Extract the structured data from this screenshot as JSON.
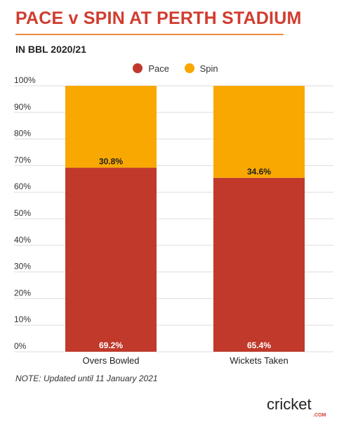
{
  "title": "PACE v SPIN AT PERTH STADIUM",
  "subtitle": "IN BBL 2020/21",
  "note": "NOTE: Updated until 11 January 2021",
  "logo": {
    "text": "cricket",
    "sub": ".COM"
  },
  "colors": {
    "pace": "#c0392b",
    "spin": "#f8a800",
    "title": "#d13c2f",
    "accent": "#ef8a3a"
  },
  "chart_data": {
    "type": "bar",
    "stacked": true,
    "categories": [
      "Overs Bowled",
      "Wickets Taken"
    ],
    "series": [
      {
        "name": "Pace",
        "values": [
          69.2,
          65.4
        ],
        "labels": [
          "69.2%",
          "65.4%"
        ]
      },
      {
        "name": "Spin",
        "values": [
          30.8,
          34.6
        ],
        "labels": [
          "30.8%",
          "34.6%"
        ]
      }
    ],
    "yticks": [
      "0%",
      "10%",
      "20%",
      "30%",
      "40%",
      "50%",
      "60%",
      "70%",
      "80%",
      "90%",
      "100%"
    ],
    "ylim": [
      0,
      100
    ],
    "grid": true,
    "legend": "top-center"
  }
}
